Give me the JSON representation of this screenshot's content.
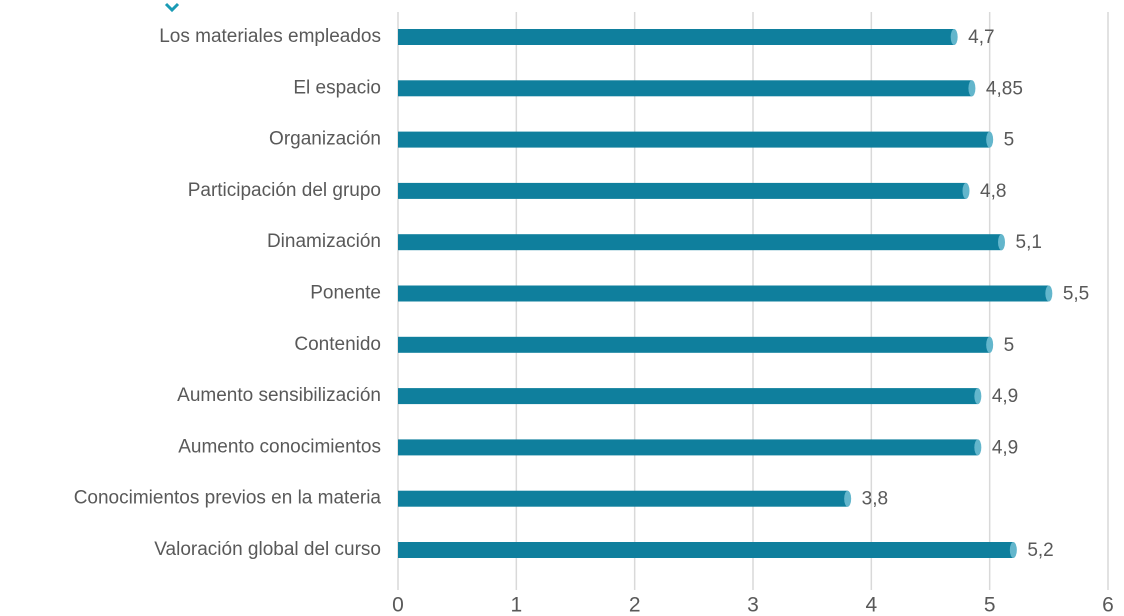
{
  "chart_data": {
    "type": "hbar",
    "categories": [
      "Los materiales empleados",
      "El espacio",
      "Organización",
      "Participación del grupo",
      "Dinamización",
      "Ponente",
      "Contenido",
      "Aumento sensibilización",
      "Aumento conocimientos",
      "Conocimientos previos en la materia",
      "Valoración global del curso"
    ],
    "values": [
      4.7,
      4.85,
      5,
      4.8,
      5.1,
      5.5,
      5,
      4.9,
      4.9,
      3.8,
      5.2
    ],
    "value_labels": [
      "4,7",
      "4,85",
      "5",
      "4,8",
      "5,1",
      "5,5",
      "5",
      "4,9",
      "4,9",
      "3,8",
      "5,2"
    ],
    "color": "#0f7f9d",
    "xlim": [
      0,
      6
    ],
    "xticks": [
      0,
      1,
      2,
      3,
      4,
      5,
      6
    ],
    "grid": true
  }
}
